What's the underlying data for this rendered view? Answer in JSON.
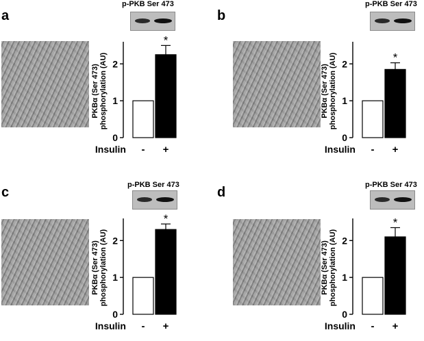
{
  "panels": [
    {
      "label": "a",
      "blot_title": "p-PKB Ser 473"
    },
    {
      "label": "b",
      "blot_title": "p-PKB Ser 473"
    },
    {
      "label": "c",
      "blot_title": "p-PKB Ser 473"
    },
    {
      "label": "d",
      "blot_title": "p-PKB Ser 473"
    }
  ],
  "chart_data": [
    {
      "type": "bar",
      "panel": "a",
      "categories": [
        "-",
        "+"
      ],
      "values": [
        1.0,
        2.25
      ],
      "errors": [
        0,
        0.25
      ],
      "significance": [
        "",
        "*"
      ],
      "ylabel_lines": [
        "PKBα (Ser 473)",
        "phosphorylation (AU)"
      ],
      "xlabel": "Insulin",
      "yticks": [
        0,
        1,
        2
      ],
      "ylim": [
        0,
        2.6
      ],
      "bar_fills": [
        "#ffffff",
        "#000000"
      ]
    },
    {
      "type": "bar",
      "panel": "b",
      "categories": [
        "-",
        "+"
      ],
      "values": [
        1.0,
        1.85
      ],
      "errors": [
        0,
        0.18
      ],
      "significance": [
        "",
        "*"
      ],
      "ylabel_lines": [
        "PKBα (Ser 473)",
        "phosphorylation (AU)"
      ],
      "xlabel": "Insulin",
      "yticks": [
        0,
        1,
        2
      ],
      "ylim": [
        0,
        2.6
      ],
      "bar_fills": [
        "#ffffff",
        "#000000"
      ]
    },
    {
      "type": "bar",
      "panel": "c",
      "categories": [
        "-",
        "+"
      ],
      "values": [
        1.0,
        2.3
      ],
      "errors": [
        0,
        0.15
      ],
      "significance": [
        "",
        "*"
      ],
      "ylabel_lines": [
        "PKBα (Ser 473)",
        "phosphorylation (AU)"
      ],
      "xlabel": "Insulin",
      "yticks": [
        0,
        1,
        2
      ],
      "ylim": [
        0,
        2.6
      ],
      "bar_fills": [
        "#ffffff",
        "#000000"
      ]
    },
    {
      "type": "bar",
      "panel": "d",
      "categories": [
        "-",
        "+"
      ],
      "values": [
        1.0,
        2.1
      ],
      "errors": [
        0,
        0.25
      ],
      "significance": [
        "",
        "*"
      ],
      "ylabel_lines": [
        "PKBα (Ser 473)",
        "phosphorylation (AU)"
      ],
      "xlabel": "Insulin",
      "yticks": [
        0,
        1,
        2
      ],
      "ylim": [
        0,
        2.6
      ],
      "bar_fills": [
        "#ffffff",
        "#000000"
      ]
    }
  ]
}
